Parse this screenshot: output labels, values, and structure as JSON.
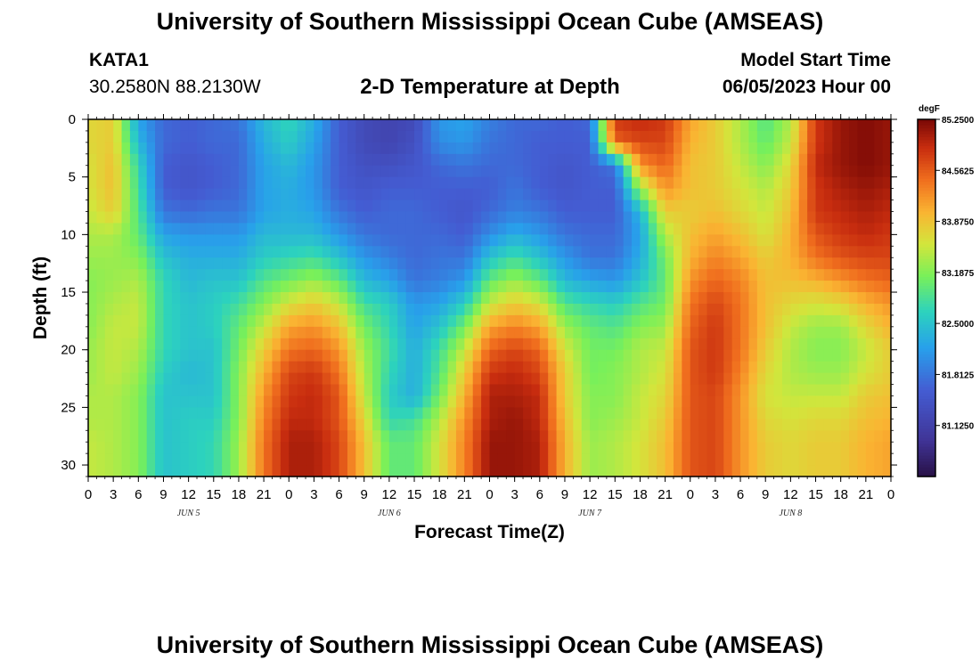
{
  "page": {
    "title_top": "University of Southern Mississippi Ocean Cube (AMSEAS)",
    "title_bottom": "University of Southern Mississippi Ocean Cube (AMSEAS)",
    "station": "KATA1",
    "coords": "30.2580N  88.2130W",
    "plot_title": "2-D Temperature at Depth",
    "model_start_label": "Model Start Time",
    "model_start_value": "06/05/2023 Hour 00"
  },
  "chart_data": {
    "type": "heatmap",
    "title": "2-D Temperature at Depth",
    "xlabel": "Forecast Time(Z)",
    "ylabel": "Depth (ft)",
    "x_range_hours": [
      0,
      96
    ],
    "y_range_ft": [
      0,
      31
    ],
    "x_ticks": [
      "0",
      "3",
      "6",
      "9",
      "12",
      "15",
      "18",
      "21",
      "0",
      "3",
      "6",
      "9",
      "12",
      "15",
      "18",
      "21",
      "0",
      "3",
      "6",
      "9",
      "12",
      "15",
      "18",
      "21",
      "0",
      "3",
      "6",
      "9",
      "12",
      "15",
      "18",
      "21",
      "0"
    ],
    "y_ticks": [
      "0",
      "5",
      "10",
      "15",
      "20",
      "25",
      "30"
    ],
    "y_tick_values": [
      0,
      5,
      10,
      15,
      20,
      25,
      30
    ],
    "day_labels": [
      "JUN 5",
      "JUN 6",
      "JUN 7",
      "JUN 8"
    ],
    "colorbar": {
      "unit": "degF",
      "range": [
        80.4375,
        85.25
      ],
      "labels": [
        "85.2500",
        "84.5625",
        "83.8750",
        "83.1875",
        "82.5000",
        "81.8125",
        "81.1250"
      ],
      "label_values": [
        85.25,
        84.5625,
        83.875,
        83.1875,
        82.5,
        81.8125,
        81.125
      ]
    },
    "depths_ft": [
      0,
      2,
      4,
      6,
      8,
      10,
      12,
      14,
      16,
      18,
      20,
      22,
      24,
      26,
      28,
      30,
      31
    ],
    "times_h": [
      0,
      3,
      6,
      9,
      12,
      15,
      18,
      21,
      24,
      27,
      30,
      33,
      36,
      39,
      42,
      45,
      48,
      51,
      54,
      57,
      60,
      63,
      66,
      69,
      72,
      75,
      78,
      81,
      84,
      87,
      90,
      93,
      96
    ],
    "columns_degF": [
      [
        83.7,
        83.7,
        83.6,
        83.6,
        83.5,
        83.4,
        83.3,
        83.2,
        83.2,
        83.2,
        83.3,
        83.3,
        83.4,
        83.4,
        83.5,
        83.5,
        83.5
      ],
      [
        83.8,
        83.8,
        83.9,
        83.9,
        83.8,
        83.4,
        83.3,
        83.3,
        83.4,
        83.5,
        83.5,
        83.5,
        83.4,
        83.4,
        83.4,
        83.4,
        83.4
      ],
      [
        82.2,
        82.4,
        82.7,
        82.8,
        82.9,
        83.0,
        83.2,
        83.4,
        83.5,
        83.5,
        83.4,
        83.3,
        83.2,
        83.2,
        83.2,
        83.2,
        83.2
      ],
      [
        81.7,
        81.7,
        81.6,
        81.6,
        81.8,
        82.2,
        82.5,
        82.7,
        82.7,
        82.7,
        82.7,
        82.6,
        82.5,
        82.5,
        82.5,
        82.5,
        82.5
      ],
      [
        81.6,
        81.6,
        81.5,
        81.5,
        81.7,
        82.1,
        82.3,
        82.4,
        82.5,
        82.5,
        82.5,
        82.4,
        82.5,
        82.6,
        82.6,
        82.6,
        82.6
      ],
      [
        81.7,
        81.7,
        81.6,
        81.6,
        81.8,
        82.1,
        82.3,
        82.5,
        82.6,
        82.6,
        82.5,
        82.5,
        82.5,
        82.6,
        82.7,
        82.7,
        82.7
      ],
      [
        81.8,
        81.7,
        81.7,
        81.7,
        81.8,
        82.1,
        82.3,
        82.5,
        82.8,
        83.0,
        83.1,
        83.2,
        83.2,
        83.2,
        83.3,
        83.3,
        83.3
      ],
      [
        82.4,
        82.3,
        82.2,
        82.2,
        82.2,
        82.4,
        82.6,
        82.9,
        83.2,
        83.5,
        83.8,
        84.0,
        84.2,
        84.3,
        84.4,
        84.4,
        84.4
      ],
      [
        82.7,
        82.6,
        82.4,
        82.3,
        82.3,
        82.4,
        82.7,
        83.1,
        83.6,
        84.1,
        84.4,
        84.7,
        84.8,
        84.9,
        85.0,
        85.0,
        85.0
      ],
      [
        82.3,
        82.2,
        82.1,
        82.1,
        82.2,
        82.4,
        82.8,
        83.3,
        83.8,
        84.2,
        84.5,
        84.8,
        84.9,
        84.9,
        85.0,
        85.0,
        85.0
      ],
      [
        81.6,
        81.6,
        81.6,
        81.6,
        81.8,
        82.1,
        82.5,
        83.0,
        83.5,
        83.9,
        84.2,
        84.4,
        84.6,
        84.6,
        84.7,
        84.7,
        84.7
      ],
      [
        81.3,
        81.3,
        81.4,
        81.5,
        81.6,
        81.8,
        82.1,
        82.4,
        82.8,
        83.1,
        83.3,
        83.4,
        83.5,
        83.7,
        83.9,
        83.9,
        83.9
      ],
      [
        81.2,
        81.2,
        81.4,
        81.6,
        81.7,
        81.7,
        81.9,
        82.2,
        82.6,
        82.7,
        82.8,
        82.7,
        82.6,
        82.7,
        83.0,
        83.0,
        83.0
      ],
      [
        81.3,
        81.4,
        81.5,
        81.6,
        81.7,
        81.7,
        81.7,
        81.8,
        82.1,
        82.2,
        82.3,
        82.3,
        82.3,
        82.8,
        83.0,
        83.0,
        83.0
      ],
      [
        82.1,
        82.0,
        81.7,
        81.6,
        81.6,
        81.7,
        81.8,
        81.9,
        82.2,
        82.5,
        82.8,
        82.9,
        83.1,
        83.4,
        83.6,
        83.6,
        83.6
      ],
      [
        82.2,
        82.1,
        81.8,
        81.6,
        81.5,
        81.6,
        81.8,
        82.1,
        82.6,
        83.1,
        83.5,
        83.8,
        84.0,
        84.2,
        84.3,
        84.3,
        84.3
      ],
      [
        81.9,
        81.8,
        81.7,
        81.6,
        81.7,
        82.0,
        82.5,
        83.0,
        83.5,
        84.1,
        84.5,
        84.8,
        85.0,
        85.0,
        85.1,
        85.1,
        85.1
      ],
      [
        81.7,
        81.7,
        81.7,
        81.8,
        81.9,
        82.3,
        82.8,
        83.3,
        83.8,
        84.3,
        84.7,
        84.9,
        85.0,
        85.1,
        85.1,
        85.1,
        85.1
      ],
      [
        81.7,
        81.6,
        81.6,
        81.6,
        81.8,
        82.1,
        82.5,
        83.0,
        83.6,
        84.1,
        84.5,
        84.7,
        84.9,
        84.9,
        85.0,
        85.0,
        85.0
      ],
      [
        81.6,
        81.6,
        81.5,
        81.5,
        81.6,
        81.8,
        82.1,
        82.4,
        82.9,
        83.3,
        83.6,
        83.8,
        83.8,
        83.9,
        84.0,
        84.0,
        84.0
      ],
      [
        81.7,
        81.6,
        81.6,
        81.6,
        81.6,
        81.7,
        81.8,
        82.2,
        82.7,
        83.0,
        83.1,
        83.1,
        83.2,
        83.2,
        83.3,
        83.3,
        83.3
      ],
      [
        84.8,
        84.5,
        81.8,
        81.6,
        81.6,
        81.7,
        81.8,
        82.1,
        82.6,
        82.9,
        83.1,
        83.2,
        83.2,
        83.3,
        83.4,
        83.4,
        83.4
      ],
      [
        84.9,
        84.7,
        84.2,
        83.3,
        82.4,
        82.2,
        82.3,
        82.5,
        82.9,
        83.2,
        83.4,
        83.4,
        83.5,
        83.5,
        83.6,
        83.6,
        83.6
      ],
      [
        84.8,
        84.7,
        84.5,
        84.2,
        83.8,
        83.4,
        83.1,
        83.0,
        83.1,
        83.3,
        83.5,
        83.6,
        83.7,
        83.8,
        83.9,
        83.9,
        83.9
      ],
      [
        84.1,
        84.0,
        83.9,
        83.9,
        83.8,
        83.9,
        84.0,
        84.2,
        84.4,
        84.5,
        84.6,
        84.6,
        84.6,
        84.6,
        84.6,
        84.6,
        84.6
      ],
      [
        83.8,
        83.8,
        83.8,
        83.8,
        83.9,
        84.1,
        84.3,
        84.5,
        84.7,
        84.8,
        84.8,
        84.8,
        84.7,
        84.7,
        84.7,
        84.7,
        84.7
      ],
      [
        83.4,
        83.4,
        83.5,
        83.6,
        83.7,
        83.9,
        84.1,
        84.3,
        84.4,
        84.4,
        84.4,
        84.3,
        84.2,
        84.2,
        84.2,
        84.2,
        84.2
      ],
      [
        82.9,
        83.0,
        83.2,
        83.4,
        83.5,
        83.6,
        83.8,
        83.9,
        83.9,
        83.9,
        83.8,
        83.7,
        83.6,
        83.7,
        83.8,
        83.8,
        83.8
      ],
      [
        83.4,
        83.5,
        83.7,
        83.8,
        83.9,
        84.0,
        84.0,
        83.9,
        83.7,
        83.5,
        83.4,
        83.4,
        83.5,
        83.6,
        83.7,
        83.7,
        83.7
      ],
      [
        84.8,
        84.8,
        84.9,
        84.8,
        84.8,
        84.6,
        84.4,
        84.0,
        83.6,
        83.3,
        83.2,
        83.3,
        83.5,
        83.7,
        83.8,
        83.8,
        83.8
      ],
      [
        85.1,
        85.1,
        85.1,
        85.0,
        84.9,
        84.8,
        84.6,
        84.2,
        83.7,
        83.3,
        83.2,
        83.3,
        83.5,
        83.7,
        83.8,
        83.8,
        83.8
      ],
      [
        85.2,
        85.2,
        85.2,
        85.1,
        85.0,
        84.9,
        84.7,
        84.4,
        84.0,
        83.7,
        83.5,
        83.6,
        83.8,
        83.9,
        84.0,
        84.0,
        84.0
      ],
      [
        85.1,
        85.1,
        85.1,
        85.0,
        84.9,
        84.8,
        84.7,
        84.5,
        84.2,
        84.0,
        83.8,
        83.8,
        83.9,
        84.0,
        84.1,
        84.1,
        84.1
      ]
    ]
  }
}
